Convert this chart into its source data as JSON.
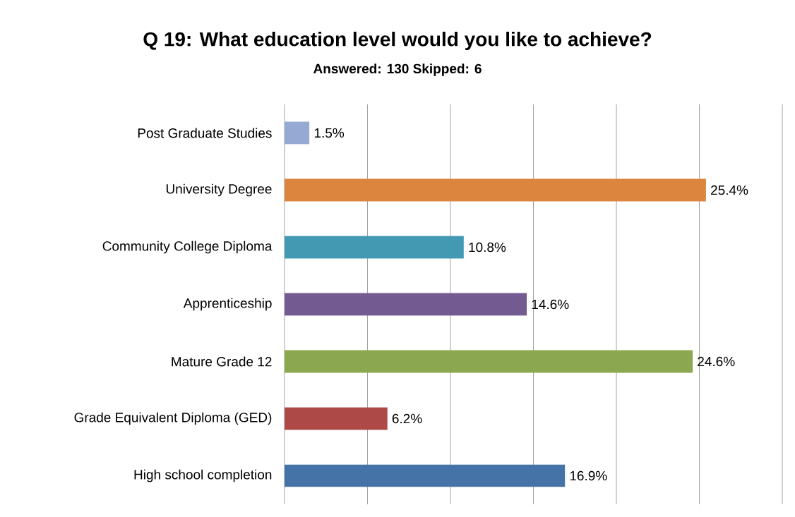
{
  "chart_data": {
    "type": "bar",
    "orientation": "horizontal",
    "title": "Q 19: What education level would you like to achieve?",
    "subtitle": "Answered: 130   Skipped: 6",
    "categories": [
      "Post Graduate Studies",
      "University Degree",
      "Community College Diploma",
      "Apprenticeship",
      "Mature Grade 12",
      "Grade Equivalent Diploma (GED)",
      "High school completion"
    ],
    "values": [
      1.5,
      25.4,
      10.8,
      14.6,
      24.6,
      6.2,
      16.9
    ],
    "value_labels": [
      "1.5%",
      "25.4%",
      "10.8%",
      "14.6%",
      "24.6%",
      "6.2%",
      "16.9%"
    ],
    "colors": [
      "#95a9d2",
      "#dc853e",
      "#4399b2",
      "#735b92",
      "#8ba74f",
      "#ad4a48",
      "#4573a7"
    ],
    "xlim": [
      0,
      30
    ],
    "xticks": [
      {
        "value": 0,
        "label": null
      },
      {
        "value": 5,
        "label": null
      },
      {
        "value": 10,
        "label": null
      },
      {
        "value": 15,
        "label": null
      },
      {
        "value": 20,
        "label": null
      },
      {
        "value": 25,
        "label": null
      },
      {
        "value": 30,
        "label": null
      }
    ],
    "grid": "x",
    "tick_labels": "y"
  }
}
